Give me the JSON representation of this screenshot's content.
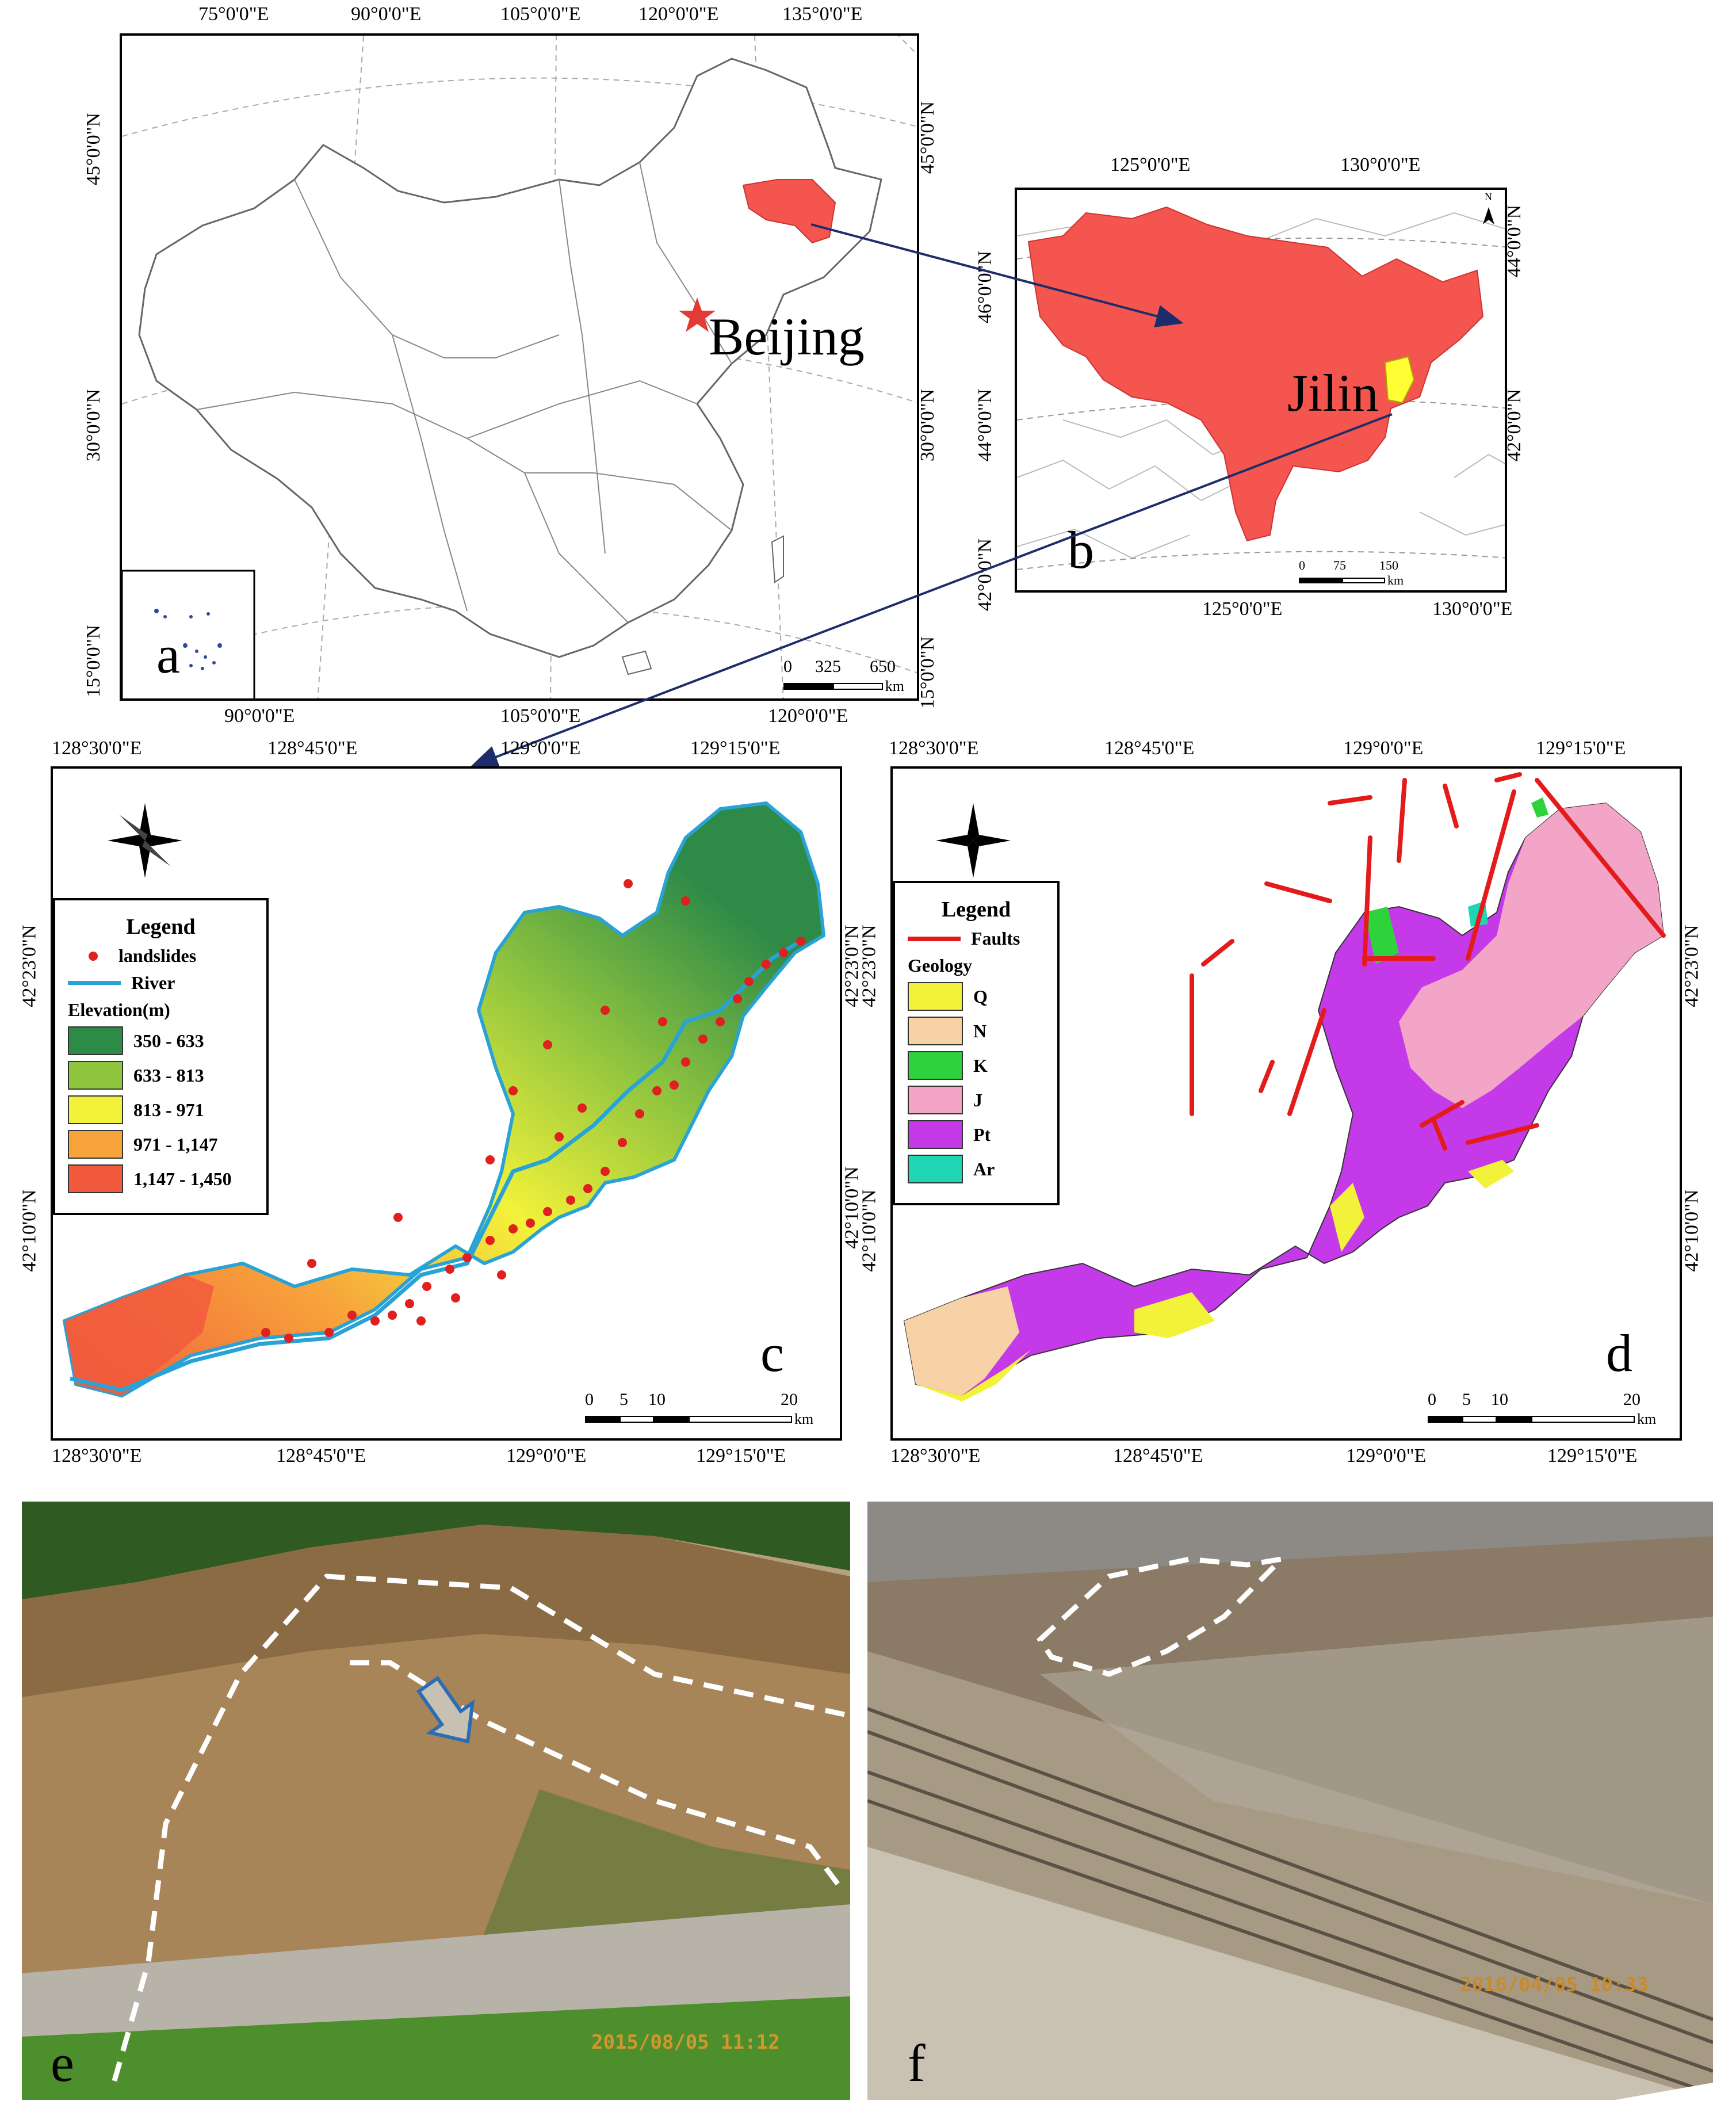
{
  "panels": {
    "a": {
      "letter": "a",
      "top_labels": [
        "75°0'0\"E",
        "90°0'0\"E",
        "105°0'0\"E",
        "120°0'0\"E",
        "135°0'0\"E"
      ],
      "bottom_labels": [
        "90°0'0\"E",
        "105°0'0\"E",
        "120°0'0\"E"
      ],
      "left_labels": [
        "45°0'0\"N",
        "30°0'0\"N",
        "15°0'0\"N"
      ],
      "right_labels": [
        "45°0'0\"N",
        "30°0'0\"N",
        "15°0'0\"N"
      ],
      "city": "Beijing",
      "scale": {
        "ticks": [
          "0",
          "325",
          "650"
        ],
        "unit": "km"
      },
      "colors": {
        "province": "#f4554e",
        "capital_star": "#e53935"
      }
    },
    "b": {
      "letter": "b",
      "top_labels": [
        "125°0'0\"E",
        "130°0'0\"E"
      ],
      "bottom_labels": [
        "125°0'0\"E",
        "130°0'0\"E"
      ],
      "left_labels": [
        "46°0'0\"N",
        "44°0'0\"N",
        "42°0'0\"N"
      ],
      "right_labels": [
        "44°0'0\"N",
        "42°0'0\"N"
      ],
      "province_label": "Jilin",
      "north": "N",
      "scale": {
        "ticks": [
          "0",
          "75",
          "150"
        ],
        "unit": "km"
      },
      "colors": {
        "province": "#f4554e",
        "study_area": "#ffff33"
      }
    },
    "c": {
      "letter": "c",
      "top_labels": [
        "128°30'0\"E",
        "128°45'0\"E",
        "129°0'0\"E",
        "129°15'0\"E"
      ],
      "bottom_labels": [
        "128°30'0\"E",
        "128°45'0\"E",
        "129°0'0\"E",
        "129°15'0\"E"
      ],
      "left_labels": [
        "42°23'0\"N",
        "42°10'0\"N"
      ],
      "right_labels": [
        "42°23'0\"N",
        "42°10'0\"N"
      ],
      "compass": [
        "N",
        "E",
        "S",
        "W"
      ],
      "legend": {
        "title": "Legend",
        "landslides": "landslides",
        "river": "River",
        "elevation_title": "Elevation(m)",
        "classes": [
          {
            "label": "350 - 633",
            "color": "#2e8b47"
          },
          {
            "label": "633 - 813",
            "color": "#8fc43f"
          },
          {
            "label": "813 - 971",
            "color": "#f2f23a"
          },
          {
            "label": "971 - 1,147",
            "color": "#f7a33b"
          },
          {
            "label": "1,147 - 1,450",
            "color": "#f15a3c"
          }
        ]
      },
      "scale": {
        "ticks": [
          "0",
          "5",
          "10",
          "20"
        ],
        "unit": "km"
      },
      "colors": {
        "landslide": "#e01f1f",
        "river": "#29a3d6"
      }
    },
    "d": {
      "letter": "d",
      "top_labels": [
        "128°30'0\"E",
        "128°45'0\"E",
        "129°0'0\"E",
        "129°15'0\"E"
      ],
      "bottom_labels": [
        "128°30'0\"E",
        "128°45'0\"E",
        "129°0'0\"E",
        "129°15'0\"E"
      ],
      "left_labels": [
        "42°23'0\"N",
        "42°10'0\"N"
      ],
      "right_labels": [
        "42°23'0\"N",
        "42°10'0\"N"
      ],
      "compass": [
        "N",
        "E",
        "S",
        "W"
      ],
      "legend": {
        "title": "Legend",
        "faults": "Faults",
        "geology_title": "Geology",
        "classes": [
          {
            "label": "Q",
            "color": "#f2f23a"
          },
          {
            "label": "N",
            "color": "#f6d2a6"
          },
          {
            "label": "K",
            "color": "#2ed33c"
          },
          {
            "label": "J",
            "color": "#f2a5c6"
          },
          {
            "label": "Pt",
            "color": "#c43ae8"
          },
          {
            "label": "Ar",
            "color": "#1ed6b4"
          }
        ]
      },
      "scale": {
        "ticks": [
          "0",
          "5",
          "10",
          "20"
        ],
        "unit": "km"
      },
      "colors": {
        "fault": "#e31b1b"
      }
    },
    "e": {
      "letter": "e",
      "timestamp": "2015/08/05  11:12"
    },
    "f": {
      "letter": "f",
      "timestamp": "2016/04/05  10:33"
    }
  }
}
